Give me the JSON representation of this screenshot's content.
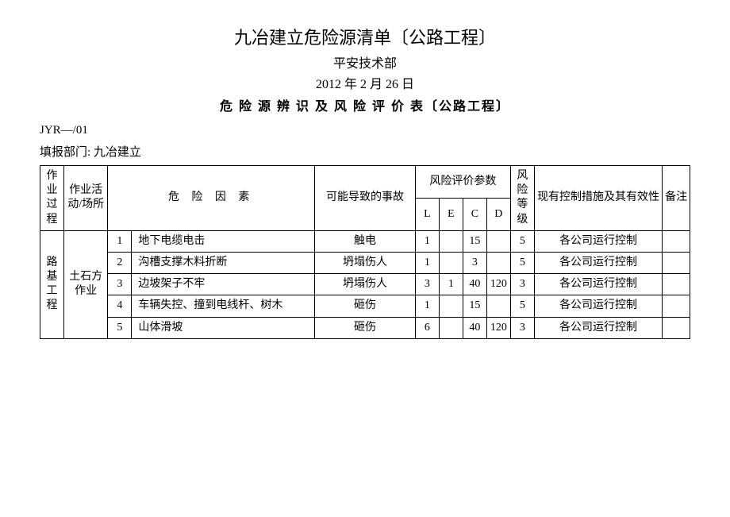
{
  "header": {
    "title_main": "九冶建立危险源清单〔公路工程〕",
    "title_sub": "平安技术部",
    "title_date": "2012 年 2 月 26 日",
    "title_table": "危 险 源 辨 识 及 风 险 评 价 表〔公路工程〕",
    "doc_code": "JYR—/01",
    "dept_label": "填报部门: 九冶建立"
  },
  "columns": {
    "process": "作业过程",
    "activity": "作业活动/场所",
    "factor": "危 险 因 素",
    "accident": "可能导致的事故",
    "risk_params": "风险评价参数",
    "L": "L",
    "E": "E",
    "C": "C",
    "D": "D",
    "level": "风险等级",
    "measure": "现有控制措施及其有效性",
    "note": "备注"
  },
  "process_group": "路基工程",
  "activity_group": "土石方作业",
  "rows": [
    {
      "n": "1",
      "factor": "地下电缆电击",
      "accident": "触电",
      "L": "1",
      "E": "",
      "C": "15",
      "D": "",
      "level": "5",
      "measure": "各公司运行控制",
      "note": ""
    },
    {
      "n": "2",
      "factor": "沟槽支撑木料折断",
      "accident": "坍塌伤人",
      "L": "1",
      "E": "",
      "C": "3",
      "D": "",
      "level": "5",
      "measure": "各公司运行控制",
      "note": ""
    },
    {
      "n": "3",
      "factor": "边坡架子不牢",
      "accident": "坍塌伤人",
      "L": "3",
      "E": "1",
      "C": "40",
      "D": "120",
      "level": "3",
      "measure": "各公司运行控制",
      "note": ""
    },
    {
      "n": "4",
      "factor": "车辆失控、撞到电线杆、树木",
      "accident": "砸伤",
      "L": "1",
      "E": "",
      "C": "15",
      "D": "",
      "level": "5",
      "measure": "各公司运行控制",
      "note": ""
    },
    {
      "n": "5",
      "factor": "山体滑坡",
      "accident": "砸伤",
      "L": "6",
      "E": "",
      "C": "40",
      "D": "120",
      "level": "3",
      "measure": "各公司运行控制",
      "note": ""
    }
  ]
}
